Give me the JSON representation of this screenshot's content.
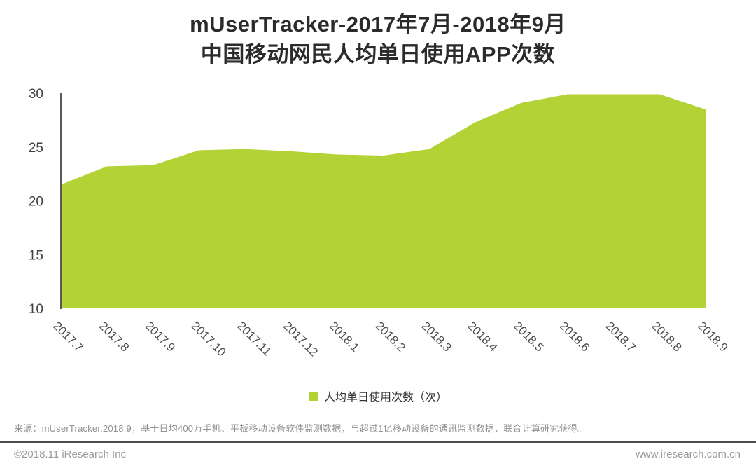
{
  "header": {
    "title_line1": "mUserTracker-2017年7月-2018年9月",
    "title_line2": "中国移动网民人均单日使用APP次数"
  },
  "chart_data": {
    "type": "area",
    "title": "mUserTracker-2017年7月-2018年9月中国移动网民人均单日使用APP次数",
    "categories": [
      "2017.7",
      "2017.8",
      "2017.9",
      "2017.10",
      "2017.11",
      "2017.12",
      "2018.1",
      "2018.2",
      "2018.3",
      "2018.4",
      "2018.5",
      "2018.6",
      "2018.7",
      "2018.8",
      "2018.9"
    ],
    "series": [
      {
        "name": "人均单日使用次数（次）",
        "values": [
          21.5,
          23.2,
          23.3,
          24.7,
          24.8,
          24.6,
          24.3,
          24.2,
          24.8,
          27.3,
          29.1,
          29.9,
          29.9,
          29.9,
          28.5
        ]
      }
    ],
    "xlabel": "",
    "ylabel": "",
    "ylim": [
      10,
      30
    ],
    "yticks": [
      10,
      15,
      20,
      25,
      30
    ],
    "grid": false,
    "legend_position": "bottom",
    "x_label_rotation_deg": 45
  },
  "legend": {
    "label": "人均单日使用次数（次）"
  },
  "footer": {
    "source": "来源：mUserTracker.2018.9，基于日均400万手机、平板移动设备软件监测数据，与超过1亿移动设备的通讯监测数据，联合计算研究获得。",
    "copyright": "©2018.11 iResearch Inc",
    "website": "www.iresearch.com.cn"
  },
  "colors": {
    "area": "#b2d235",
    "axis_line": "#595959",
    "title_text": "#2b2b2b",
    "y_tick_text": "#404040",
    "x_tick_text": "#4d4d4d",
    "muted_text": "#919191",
    "divider": "#4d4d4d"
  }
}
